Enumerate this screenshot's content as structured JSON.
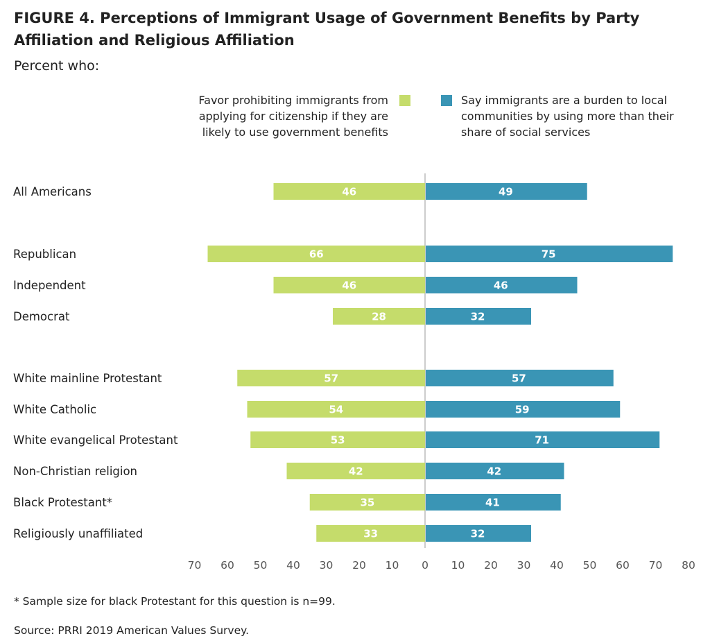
{
  "figure": {
    "title": "FIGURE 4.  Perceptions of Immigrant Usage of Government Benefits by Party Affiliation and Religious Affiliation",
    "subtitle": "Percent who:"
  },
  "legend": {
    "left": "Favor prohibiting immigrants from applying for citizenship if they are likely to use government benefits",
    "right": "Say immigrants are a burden to local communities by using more than their share of social services"
  },
  "colors": {
    "green": "#c5dc6b",
    "blue": "#3a95b5",
    "axis": "#cccccc"
  },
  "chart_data": {
    "type": "bar",
    "orientation": "horizontal-diverging",
    "title": "FIGURE 4.  Perceptions of Immigrant Usage of Government Benefits by Party Affiliation and Religious Affiliation",
    "subtitle": "Percent who:",
    "categories": [
      "All Americans",
      "Republican",
      "Independent",
      "Democrat",
      "White mainline Protestant",
      "White Catholic",
      "White evangelical Protestant",
      "Non-Christian religion",
      "Black Protestant*",
      "Religiously unaffiliated"
    ],
    "series": [
      {
        "name": "Favor prohibiting immigrants from applying for citizenship if they are likely to use government benefits",
        "values": [
          46,
          66,
          46,
          28,
          57,
          54,
          53,
          42,
          35,
          33
        ]
      },
      {
        "name": "Say immigrants are a burden to local communities by using more than their share of social services",
        "values": [
          49,
          75,
          46,
          32,
          57,
          59,
          71,
          42,
          41,
          32
        ]
      }
    ],
    "left_ticks": [
      70,
      60,
      50,
      40,
      30,
      20,
      10
    ],
    "right_ticks": [
      0,
      10,
      20,
      30,
      40,
      50,
      60,
      70,
      80
    ],
    "xlim_left": [
      0,
      70
    ],
    "xlim_right": [
      0,
      80
    ],
    "legend_position": "top",
    "grid": false
  },
  "notes": {
    "footnote": "* Sample size for black Protestant for this question is n=99.",
    "source": "Source: PRRI 2019 American Values Survey."
  }
}
